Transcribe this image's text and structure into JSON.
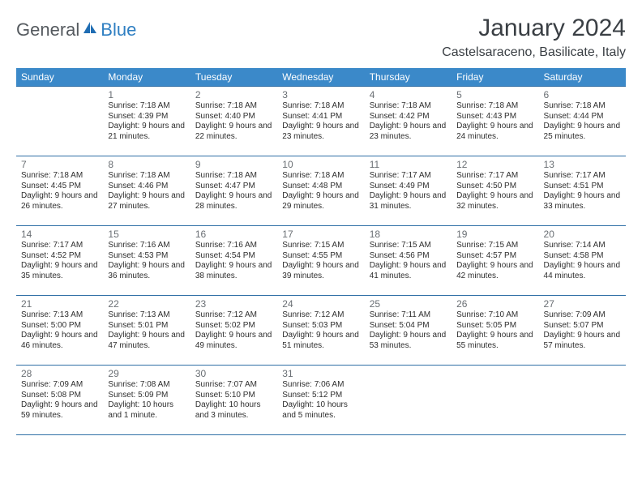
{
  "brand": {
    "part1": "General",
    "part2": "Blue"
  },
  "title": "January 2024",
  "location": "Castelsaraceno, Basilicate, Italy",
  "colors": {
    "header_bg": "#3b89c9",
    "header_text": "#ffffff",
    "rule": "#2f6fa6",
    "daynum": "#6a6f74",
    "body_text": "#2e2e2e",
    "title_text": "#3a3f44",
    "brand_gray": "#555a5f",
    "brand_blue": "#2f7fc2",
    "page_bg": "#ffffff"
  },
  "weekdays": [
    "Sunday",
    "Monday",
    "Tuesday",
    "Wednesday",
    "Thursday",
    "Friday",
    "Saturday"
  ],
  "weeks": [
    [
      {
        "day": "",
        "sunrise": "",
        "sunset": "",
        "daylight": ""
      },
      {
        "day": "1",
        "sunrise": "Sunrise: 7:18 AM",
        "sunset": "Sunset: 4:39 PM",
        "daylight": "Daylight: 9 hours and 21 minutes."
      },
      {
        "day": "2",
        "sunrise": "Sunrise: 7:18 AM",
        "sunset": "Sunset: 4:40 PM",
        "daylight": "Daylight: 9 hours and 22 minutes."
      },
      {
        "day": "3",
        "sunrise": "Sunrise: 7:18 AM",
        "sunset": "Sunset: 4:41 PM",
        "daylight": "Daylight: 9 hours and 23 minutes."
      },
      {
        "day": "4",
        "sunrise": "Sunrise: 7:18 AM",
        "sunset": "Sunset: 4:42 PM",
        "daylight": "Daylight: 9 hours and 23 minutes."
      },
      {
        "day": "5",
        "sunrise": "Sunrise: 7:18 AM",
        "sunset": "Sunset: 4:43 PM",
        "daylight": "Daylight: 9 hours and 24 minutes."
      },
      {
        "day": "6",
        "sunrise": "Sunrise: 7:18 AM",
        "sunset": "Sunset: 4:44 PM",
        "daylight": "Daylight: 9 hours and 25 minutes."
      }
    ],
    [
      {
        "day": "7",
        "sunrise": "Sunrise: 7:18 AM",
        "sunset": "Sunset: 4:45 PM",
        "daylight": "Daylight: 9 hours and 26 minutes."
      },
      {
        "day": "8",
        "sunrise": "Sunrise: 7:18 AM",
        "sunset": "Sunset: 4:46 PM",
        "daylight": "Daylight: 9 hours and 27 minutes."
      },
      {
        "day": "9",
        "sunrise": "Sunrise: 7:18 AM",
        "sunset": "Sunset: 4:47 PM",
        "daylight": "Daylight: 9 hours and 28 minutes."
      },
      {
        "day": "10",
        "sunrise": "Sunrise: 7:18 AM",
        "sunset": "Sunset: 4:48 PM",
        "daylight": "Daylight: 9 hours and 29 minutes."
      },
      {
        "day": "11",
        "sunrise": "Sunrise: 7:17 AM",
        "sunset": "Sunset: 4:49 PM",
        "daylight": "Daylight: 9 hours and 31 minutes."
      },
      {
        "day": "12",
        "sunrise": "Sunrise: 7:17 AM",
        "sunset": "Sunset: 4:50 PM",
        "daylight": "Daylight: 9 hours and 32 minutes."
      },
      {
        "day": "13",
        "sunrise": "Sunrise: 7:17 AM",
        "sunset": "Sunset: 4:51 PM",
        "daylight": "Daylight: 9 hours and 33 minutes."
      }
    ],
    [
      {
        "day": "14",
        "sunrise": "Sunrise: 7:17 AM",
        "sunset": "Sunset: 4:52 PM",
        "daylight": "Daylight: 9 hours and 35 minutes."
      },
      {
        "day": "15",
        "sunrise": "Sunrise: 7:16 AM",
        "sunset": "Sunset: 4:53 PM",
        "daylight": "Daylight: 9 hours and 36 minutes."
      },
      {
        "day": "16",
        "sunrise": "Sunrise: 7:16 AM",
        "sunset": "Sunset: 4:54 PM",
        "daylight": "Daylight: 9 hours and 38 minutes."
      },
      {
        "day": "17",
        "sunrise": "Sunrise: 7:15 AM",
        "sunset": "Sunset: 4:55 PM",
        "daylight": "Daylight: 9 hours and 39 minutes."
      },
      {
        "day": "18",
        "sunrise": "Sunrise: 7:15 AM",
        "sunset": "Sunset: 4:56 PM",
        "daylight": "Daylight: 9 hours and 41 minutes."
      },
      {
        "day": "19",
        "sunrise": "Sunrise: 7:15 AM",
        "sunset": "Sunset: 4:57 PM",
        "daylight": "Daylight: 9 hours and 42 minutes."
      },
      {
        "day": "20",
        "sunrise": "Sunrise: 7:14 AM",
        "sunset": "Sunset: 4:58 PM",
        "daylight": "Daylight: 9 hours and 44 minutes."
      }
    ],
    [
      {
        "day": "21",
        "sunrise": "Sunrise: 7:13 AM",
        "sunset": "Sunset: 5:00 PM",
        "daylight": "Daylight: 9 hours and 46 minutes."
      },
      {
        "day": "22",
        "sunrise": "Sunrise: 7:13 AM",
        "sunset": "Sunset: 5:01 PM",
        "daylight": "Daylight: 9 hours and 47 minutes."
      },
      {
        "day": "23",
        "sunrise": "Sunrise: 7:12 AM",
        "sunset": "Sunset: 5:02 PM",
        "daylight": "Daylight: 9 hours and 49 minutes."
      },
      {
        "day": "24",
        "sunrise": "Sunrise: 7:12 AM",
        "sunset": "Sunset: 5:03 PM",
        "daylight": "Daylight: 9 hours and 51 minutes."
      },
      {
        "day": "25",
        "sunrise": "Sunrise: 7:11 AM",
        "sunset": "Sunset: 5:04 PM",
        "daylight": "Daylight: 9 hours and 53 minutes."
      },
      {
        "day": "26",
        "sunrise": "Sunrise: 7:10 AM",
        "sunset": "Sunset: 5:05 PM",
        "daylight": "Daylight: 9 hours and 55 minutes."
      },
      {
        "day": "27",
        "sunrise": "Sunrise: 7:09 AM",
        "sunset": "Sunset: 5:07 PM",
        "daylight": "Daylight: 9 hours and 57 minutes."
      }
    ],
    [
      {
        "day": "28",
        "sunrise": "Sunrise: 7:09 AM",
        "sunset": "Sunset: 5:08 PM",
        "daylight": "Daylight: 9 hours and 59 minutes."
      },
      {
        "day": "29",
        "sunrise": "Sunrise: 7:08 AM",
        "sunset": "Sunset: 5:09 PM",
        "daylight": "Daylight: 10 hours and 1 minute."
      },
      {
        "day": "30",
        "sunrise": "Sunrise: 7:07 AM",
        "sunset": "Sunset: 5:10 PM",
        "daylight": "Daylight: 10 hours and 3 minutes."
      },
      {
        "day": "31",
        "sunrise": "Sunrise: 7:06 AM",
        "sunset": "Sunset: 5:12 PM",
        "daylight": "Daylight: 10 hours and 5 minutes."
      },
      {
        "day": "",
        "sunrise": "",
        "sunset": "",
        "daylight": ""
      },
      {
        "day": "",
        "sunrise": "",
        "sunset": "",
        "daylight": ""
      },
      {
        "day": "",
        "sunrise": "",
        "sunset": "",
        "daylight": ""
      }
    ]
  ]
}
